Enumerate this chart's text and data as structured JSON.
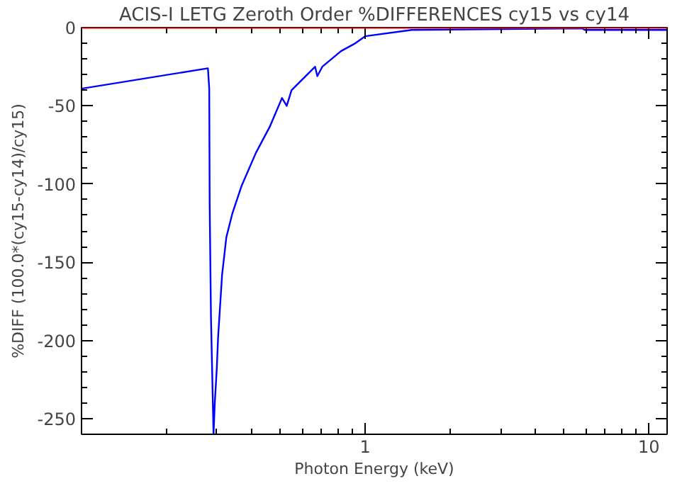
{
  "chart_data": {
    "type": "line",
    "title": "ACIS-I LETG Zeroth Order %DIFFERENCES cy15 vs cy14",
    "xlabel": "Photon Energy (keV)",
    "ylabel": "%DIFF (100.0*(cy15-cy14)/cy15)",
    "log": "x",
    "xlim": [
      0.1,
      11.6
    ],
    "xticks": [
      1,
      10
    ],
    "ylim": [
      -260,
      0
    ],
    "yticks": [
      0,
      -50,
      -100,
      -150,
      -200,
      -250
    ],
    "grid": false,
    "marker": "none",
    "line_style": "solid",
    "ref_lines": [
      {
        "axis": "y",
        "value": 0,
        "color": "#ff0000"
      }
    ],
    "series": [
      {
        "color": "#0000ff",
        "x": [
          0.1,
          0.279,
          0.282,
          0.283,
          0.286,
          0.292,
          0.295,
          0.3,
          0.303,
          0.313,
          0.324,
          0.34,
          0.367,
          0.412,
          0.462,
          0.509,
          0.529,
          0.55,
          0.666,
          0.678,
          0.706,
          0.822,
          0.923,
          1.0,
          1.46,
          5.82,
          5.94,
          11.6
        ],
        "values": [
          -39,
          -26,
          -39,
          -113,
          -185,
          -260,
          -240,
          -217,
          -198,
          -158,
          -134,
          -119,
          -101,
          -80,
          -63,
          -45,
          -50,
          -40,
          -25,
          -31,
          -25,
          -15,
          -10,
          -5.5,
          -1.5,
          -0.5,
          -1.5,
          -1.5
        ]
      }
    ]
  }
}
